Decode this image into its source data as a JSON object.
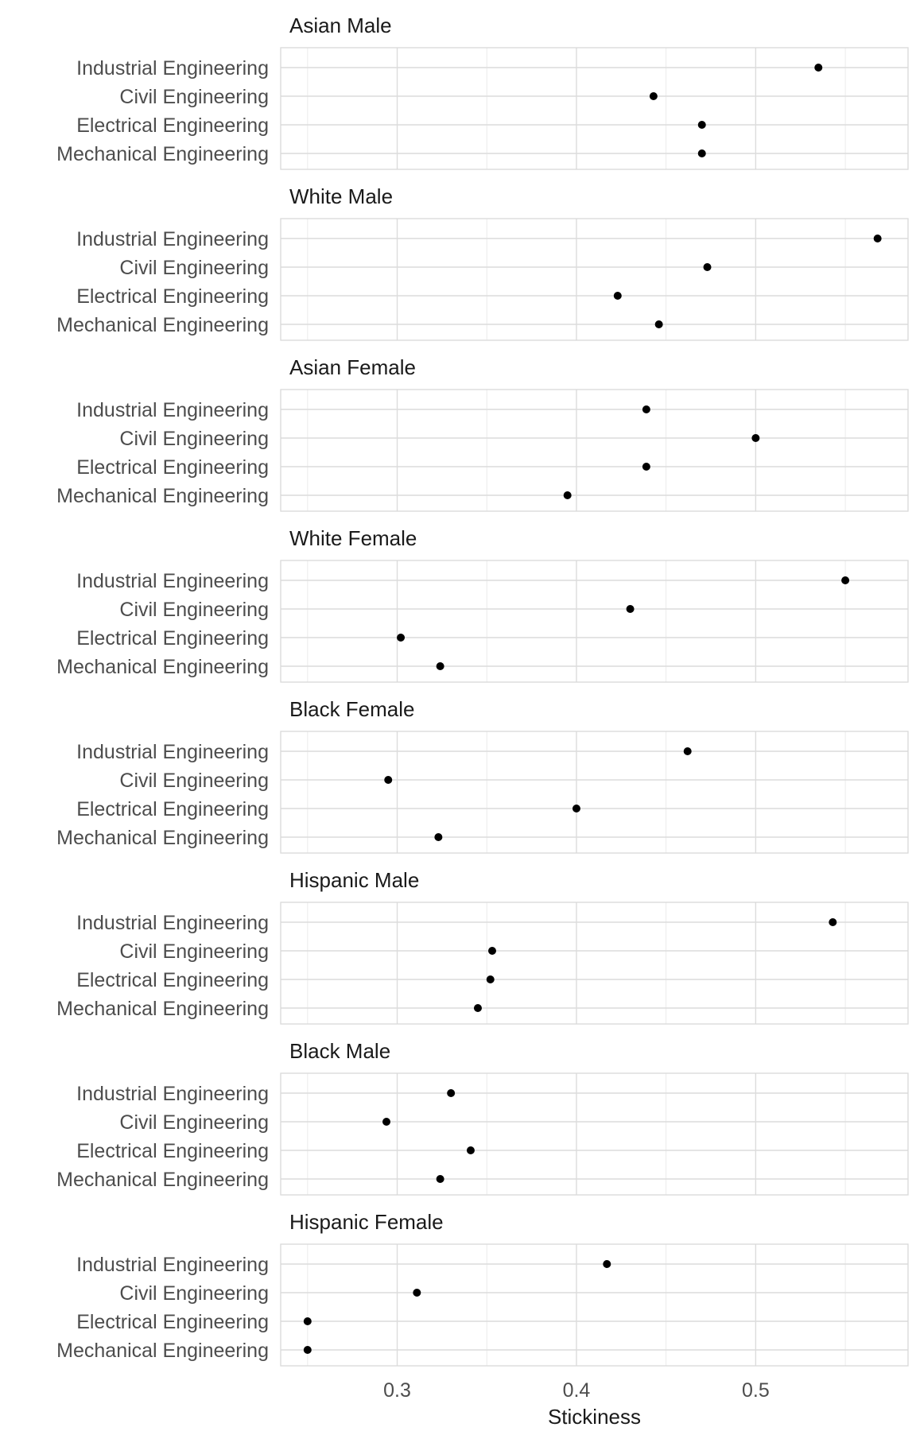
{
  "chart_data": {
    "type": "scatter",
    "xlabel": "Stickiness",
    "ylabel": "",
    "xlim": [
      0.235,
      0.585
    ],
    "x_ticks": [
      "0.3",
      "0.4",
      "0.5"
    ],
    "x_tick_values": [
      0.3,
      0.4,
      0.5
    ],
    "x_minor_ticks": [
      0.25,
      0.35,
      0.45,
      0.55
    ],
    "categories": [
      "Industrial Engineering",
      "Civil Engineering",
      "Electrical Engineering",
      "Mechanical Engineering"
    ],
    "grid": true,
    "point_color": "#000000",
    "facets": [
      {
        "title": "Asian Male",
        "values": [
          0.535,
          0.443,
          0.47,
          0.47
        ]
      },
      {
        "title": "White Male",
        "values": [
          0.568,
          0.473,
          0.423,
          0.446
        ]
      },
      {
        "title": "Asian Female",
        "values": [
          0.439,
          0.5,
          0.439,
          0.395
        ]
      },
      {
        "title": "White Female",
        "values": [
          0.55,
          0.43,
          0.302,
          0.324
        ]
      },
      {
        "title": "Black Female",
        "values": [
          0.462,
          0.295,
          0.4,
          0.323
        ]
      },
      {
        "title": "Hispanic Male",
        "values": [
          0.543,
          0.353,
          0.352,
          0.345
        ]
      },
      {
        "title": "Black Male",
        "values": [
          0.33,
          0.294,
          0.341,
          0.324
        ]
      },
      {
        "title": "Hispanic Female",
        "values": [
          0.417,
          0.311,
          0.25,
          0.25
        ]
      }
    ]
  }
}
